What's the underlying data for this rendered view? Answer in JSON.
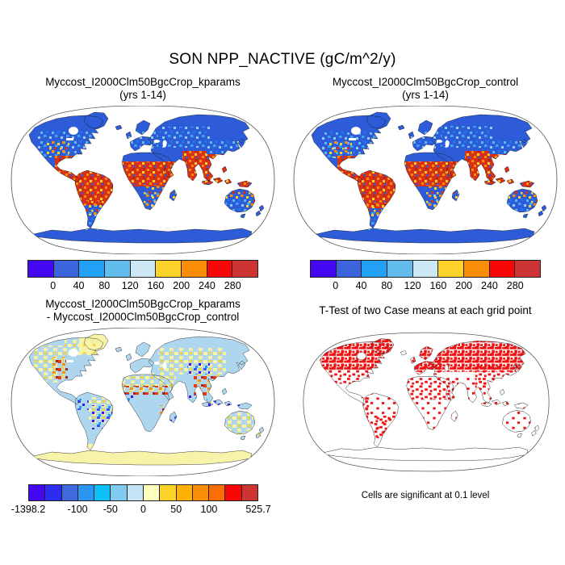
{
  "main_title": "SON NPP_NACTIVE (gC/m^2/y)",
  "panels": {
    "top_left": {
      "title_line1": "Myccost_I2000Clm50BgcCrop_kparams",
      "title_line2": "(yrs 1-14)"
    },
    "top_right": {
      "title_line1": "Myccost_I2000Clm50BgcCrop_control",
      "title_line2": "(yrs 1-14)"
    },
    "bottom_left": {
      "title_line1": "Myccost_I2000Clm50BgcCrop_kparams",
      "title_line2": "- Myccost_I2000Clm50BgcCrop_control"
    },
    "bottom_right": {
      "title": "T-Test of two Case means at each grid point",
      "note": "Cells are significant at 0.1 level"
    }
  },
  "colorbars": {
    "npp": {
      "colors": [
        "#4409f2",
        "#3c64dd",
        "#22a0f6",
        "#63bdec",
        "#cde7f5",
        "#fdd22a",
        "#fc8d06",
        "#f90606",
        "#cc3333"
      ],
      "labels": [
        {
          "t": "0",
          "p": 0.1111
        },
        {
          "t": "40",
          "p": 0.2222
        },
        {
          "t": "80",
          "p": 0.3333
        },
        {
          "t": "120",
          "p": 0.4444
        },
        {
          "t": "160",
          "p": 0.5556
        },
        {
          "t": "200",
          "p": 0.6667
        },
        {
          "t": "240",
          "p": 0.7778
        },
        {
          "t": "280",
          "p": 0.8889
        }
      ]
    },
    "diff": {
      "colors": [
        "#4409f2",
        "#2d2df2",
        "#3f6ade",
        "#2b95f3",
        "#0ec0f8",
        "#7fccf0",
        "#c4e4f5",
        "#ffffbe",
        "#fdd22a",
        "#ffb005",
        "#fc8d06",
        "#fb6e03",
        "#f90606",
        "#cc3333"
      ],
      "labels": [
        {
          "t": "-1398.2",
          "p": 0
        },
        {
          "t": "-100",
          "p": 0.2143
        },
        {
          "t": "-50",
          "p": 0.3571
        },
        {
          "t": "0",
          "p": 0.5
        },
        {
          "t": "50",
          "p": 0.6429
        },
        {
          "t": "100",
          "p": 0.7857
        },
        {
          "t": "525.7",
          "p": 1
        }
      ]
    }
  },
  "chart_data": [
    {
      "type": "heatmap",
      "subtype": "global-map-robinson",
      "title": "Myccost_I2000Clm50BgcCrop_kparams (yrs 1-14)",
      "variable": "NPP_NACTIVE",
      "season": "SON",
      "units": "gC/m^2/y",
      "colorbar_ticks": [
        0,
        40,
        80,
        120,
        160,
        200,
        240,
        280
      ],
      "palette": [
        "#4409f2",
        "#3c64dd",
        "#22a0f6",
        "#63bdec",
        "#cde7f5",
        "#fdd22a",
        "#fc8d06",
        "#f90606",
        "#cc3333"
      ],
      "ocean": "masked white",
      "pattern": "High values >240 (red) across tropics: Central America, Amazon/N South America, Sahel-to-Congo belt, India, SE Asia, Indonesia, New Guinea, N Australia rim; 0-40 (blue) over boreal N America, Siberia, deserts, Greenland, Antarctica; 40-160 (light blues) SE US, Europe, E China, S Brazil, S Africa, S Australia"
    },
    {
      "type": "heatmap",
      "subtype": "global-map-robinson",
      "title": "Myccost_I2000Clm50BgcCrop_control (yrs 1-14)",
      "variable": "NPP_NACTIVE",
      "season": "SON",
      "units": "gC/m^2/y",
      "colorbar_ticks": [
        0,
        40,
        80,
        120,
        160,
        200,
        240,
        280
      ],
      "palette": [
        "#4409f2",
        "#3c64dd",
        "#22a0f6",
        "#63bdec",
        "#cde7f5",
        "#fdd22a",
        "#fc8d06",
        "#f90606",
        "#cc3333"
      ],
      "ocean": "masked white",
      "pattern": "Nearly identical spatial pattern to kparams case; slightly more red coverage in Brazil and SE Asia"
    },
    {
      "type": "heatmap",
      "subtype": "global-map-robinson-difference",
      "title": "Myccost_I2000Clm50BgcCrop_kparams - Myccost_I2000Clm50BgcCrop_control",
      "variable": "NPP_NACTIVE difference",
      "season": "SON",
      "units": "gC/m^2/y",
      "range": [
        -1398.2,
        525.7
      ],
      "colorbar_ticks": [
        -1398.2,
        -100,
        -50,
        0,
        50,
        100,
        525.7
      ],
      "palette": [
        "#4409f2",
        "#2d2df2",
        "#3f6ade",
        "#2b95f3",
        "#0ec0f8",
        "#7fccf0",
        "#c4e4f5",
        "#ffffbe",
        "#fdd22a",
        "#ffb005",
        "#fc8d06",
        "#fb6e03",
        "#f90606",
        "#cc3333"
      ],
      "ocean": "masked white",
      "pattern": "Mostly small differences (pale blue / pale yellow); positive (orange-red) central US, Sahel band, NE India/Bangladesh, Indochina; strong negative (blue-violet) E Brazil, Caribbean coast, W Africa coast, S India, Tibet, Madagascar; Greenland and Antarctica slightly positive (pale yellow)"
    },
    {
      "type": "map",
      "subtype": "significance-mask",
      "title": "T-Test of two Case means at each grid point",
      "note": "Cells are significant at 0.1 level",
      "significant_color": "#ee1111",
      "pattern": "Red cells = significant difference; dense over boreal North America, Siberia and N Eurasia, E Asia, Sahel and parts of Africa, S Brazil, Andes; sparse over C US, Amazon interior, S Africa, Australia; none on Antarctica"
    }
  ]
}
